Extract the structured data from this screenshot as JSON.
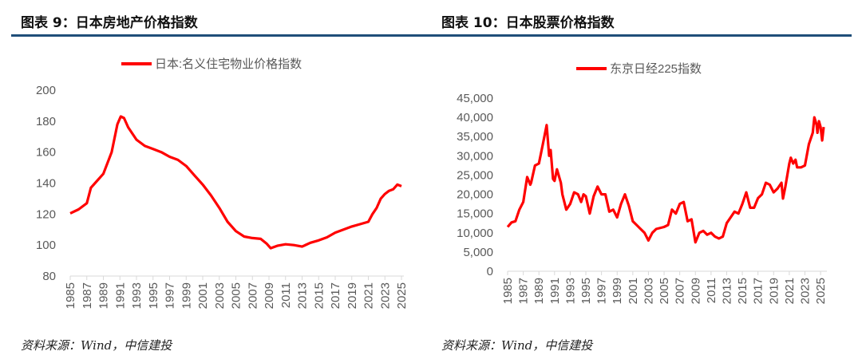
{
  "charts": [
    {
      "title": "图表  9：日本房地产价格指数",
      "source": "资料来源：Wind，中信建投"
    },
    {
      "title": "图表  10：日本股票价格指数",
      "source": "资料来源：Wind，中信建投"
    }
  ],
  "colors": {
    "line": "#ff0000",
    "rule": "#1f4e79"
  },
  "chart_data": [
    {
      "type": "line",
      "legend": "日本:名义住宅物业价格指数",
      "legend_position": "top",
      "ylim": [
        80,
        200
      ],
      "yticks": [
        80,
        100,
        120,
        140,
        160,
        180,
        200
      ],
      "xlim": [
        1985,
        2025
      ],
      "xticks": [
        1985,
        1987,
        1989,
        1991,
        1993,
        1995,
        1997,
        1999,
        2001,
        2003,
        2005,
        2007,
        2009,
        2011,
        2013,
        2015,
        2017,
        2019,
        2021,
        2023,
        2025
      ],
      "series": [
        {
          "name": "日本:名义住宅物业价格指数",
          "points": [
            [
              1985,
              120.5
            ],
            [
              1986,
              123
            ],
            [
              1987,
              127
            ],
            [
              1987.5,
              137
            ],
            [
              1988,
              140
            ],
            [
              1989,
              146
            ],
            [
              1990,
              160
            ],
            [
              1990.7,
              178
            ],
            [
              1991.1,
              183
            ],
            [
              1991.5,
              182
            ],
            [
              1992,
              176
            ],
            [
              1993,
              168
            ],
            [
              1994,
              164
            ],
            [
              1995,
              162
            ],
            [
              1996,
              160
            ],
            [
              1997,
              157
            ],
            [
              1998,
              155
            ],
            [
              1999,
              151
            ],
            [
              2000,
              145
            ],
            [
              2001,
              139
            ],
            [
              2002,
              132
            ],
            [
              2003,
              124
            ],
            [
              2004,
              115
            ],
            [
              2005,
              109
            ],
            [
              2006,
              105.5
            ],
            [
              2007,
              104.5
            ],
            [
              2008,
              104
            ],
            [
              2008.7,
              101
            ],
            [
              2009.2,
              98
            ],
            [
              2010,
              99.5
            ],
            [
              2011,
              100.5
            ],
            [
              2012,
              100
            ],
            [
              2013,
              99
            ],
            [
              2014,
              101.5
            ],
            [
              2015,
              103
            ],
            [
              2016,
              105
            ],
            [
              2017,
              108
            ],
            [
              2018,
              110
            ],
            [
              2019,
              112
            ],
            [
              2020,
              113.5
            ],
            [
              2021,
              115
            ],
            [
              2021.5,
              120
            ],
            [
              2022,
              124
            ],
            [
              2022.5,
              130
            ],
            [
              2023,
              133
            ],
            [
              2023.5,
              135
            ],
            [
              2024,
              136
            ],
            [
              2024.5,
              139
            ],
            [
              2025,
              138
            ]
          ]
        }
      ]
    },
    {
      "type": "line",
      "legend": "东京日经225指数",
      "legend_position": "top",
      "ylim": [
        0,
        45000
      ],
      "yticks": [
        0,
        5000,
        10000,
        15000,
        20000,
        25000,
        30000,
        35000,
        40000,
        45000
      ],
      "ytick_labels": [
        "0",
        "5,000",
        "10,000",
        "15,000",
        "20,000",
        "25,000",
        "30,000",
        "35,000",
        "40,000",
        "45,000"
      ],
      "xlim": [
        1985,
        2025.5
      ],
      "xticks": [
        1985,
        1987,
        1989,
        1991,
        1993,
        1995,
        1997,
        1999,
        2001,
        2003,
        2005,
        2007,
        2009,
        2011,
        2013,
        2015,
        2017,
        2019,
        2021,
        2023,
        2025
      ],
      "series": [
        {
          "name": "东京日经225指数",
          "points": [
            [
              1985,
              11500
            ],
            [
              1985.5,
              12700
            ],
            [
              1986,
              13000
            ],
            [
              1986.5,
              16000
            ],
            [
              1987,
              18000
            ],
            [
              1987.5,
              24500
            ],
            [
              1987.9,
              22500
            ],
            [
              1988,
              23000
            ],
            [
              1988.5,
              27500
            ],
            [
              1989,
              28000
            ],
            [
              1989.5,
              33000
            ],
            [
              1989.99,
              38000
            ],
            [
              1990.3,
              30000
            ],
            [
              1990.5,
              31500
            ],
            [
              1990.8,
              24000
            ],
            [
              1991,
              23500
            ],
            [
              1991.3,
              26500
            ],
            [
              1991.8,
              23000
            ],
            [
              1992,
              20000
            ],
            [
              1992.5,
              16000
            ],
            [
              1993,
              17500
            ],
            [
              1993.5,
              20500
            ],
            [
              1994,
              20000
            ],
            [
              1994.4,
              18000
            ],
            [
              1994.7,
              20000
            ],
            [
              1995,
              19500
            ],
            [
              1995.5,
              15000
            ],
            [
              1996,
              19500
            ],
            [
              1996.5,
              22000
            ],
            [
              1997,
              20000
            ],
            [
              1997.5,
              20000
            ],
            [
              1998,
              15500
            ],
            [
              1998.5,
              16000
            ],
            [
              1999,
              14000
            ],
            [
              1999.5,
              17500
            ],
            [
              2000,
              20000
            ],
            [
              2000.5,
              17000
            ],
            [
              2001,
              13000
            ],
            [
              2001.5,
              12000
            ],
            [
              2002,
              11000
            ],
            [
              2002.5,
              10000
            ],
            [
              2003,
              8000
            ],
            [
              2003.5,
              10000
            ],
            [
              2004,
              11000
            ],
            [
              2005,
              11500
            ],
            [
              2005.5,
              12000
            ],
            [
              2006,
              16000
            ],
            [
              2006.5,
              15000
            ],
            [
              2007,
              17500
            ],
            [
              2007.5,
              18000
            ],
            [
              2008,
              13000
            ],
            [
              2008.5,
              13500
            ],
            [
              2009,
              7500
            ],
            [
              2009.5,
              10000
            ],
            [
              2010,
              10500
            ],
            [
              2010.5,
              9500
            ],
            [
              2011,
              10000
            ],
            [
              2011.5,
              9000
            ],
            [
              2012,
              8500
            ],
            [
              2012.5,
              9000
            ],
            [
              2013,
              12500
            ],
            [
              2013.5,
              14000
            ],
            [
              2014,
              15500
            ],
            [
              2014.5,
              15000
            ],
            [
              2015,
              17500
            ],
            [
              2015.5,
              20500
            ],
            [
              2016,
              16500
            ],
            [
              2016.5,
              16500
            ],
            [
              2017,
              19000
            ],
            [
              2017.5,
              20000
            ],
            [
              2018,
              23000
            ],
            [
              2018.5,
              22500
            ],
            [
              2019,
              20500
            ],
            [
              2019.5,
              21500
            ],
            [
              2020,
              23000
            ],
            [
              2020.2,
              18900
            ],
            [
              2020.5,
              22000
            ],
            [
              2021,
              28000
            ],
            [
              2021.2,
              29500
            ],
            [
              2021.5,
              28000
            ],
            [
              2021.8,
              29000
            ],
            [
              2022,
              27000
            ],
            [
              2022.5,
              27000
            ],
            [
              2023,
              27500
            ],
            [
              2023.5,
              33000
            ],
            [
              2024,
              36000
            ],
            [
              2024.2,
              40000
            ],
            [
              2024.5,
              38000
            ],
            [
              2024.6,
              36000
            ],
            [
              2024.8,
              39000
            ],
            [
              2025,
              37500
            ],
            [
              2025.2,
              34000
            ],
            [
              2025.4,
              37500
            ]
          ]
        }
      ]
    }
  ]
}
